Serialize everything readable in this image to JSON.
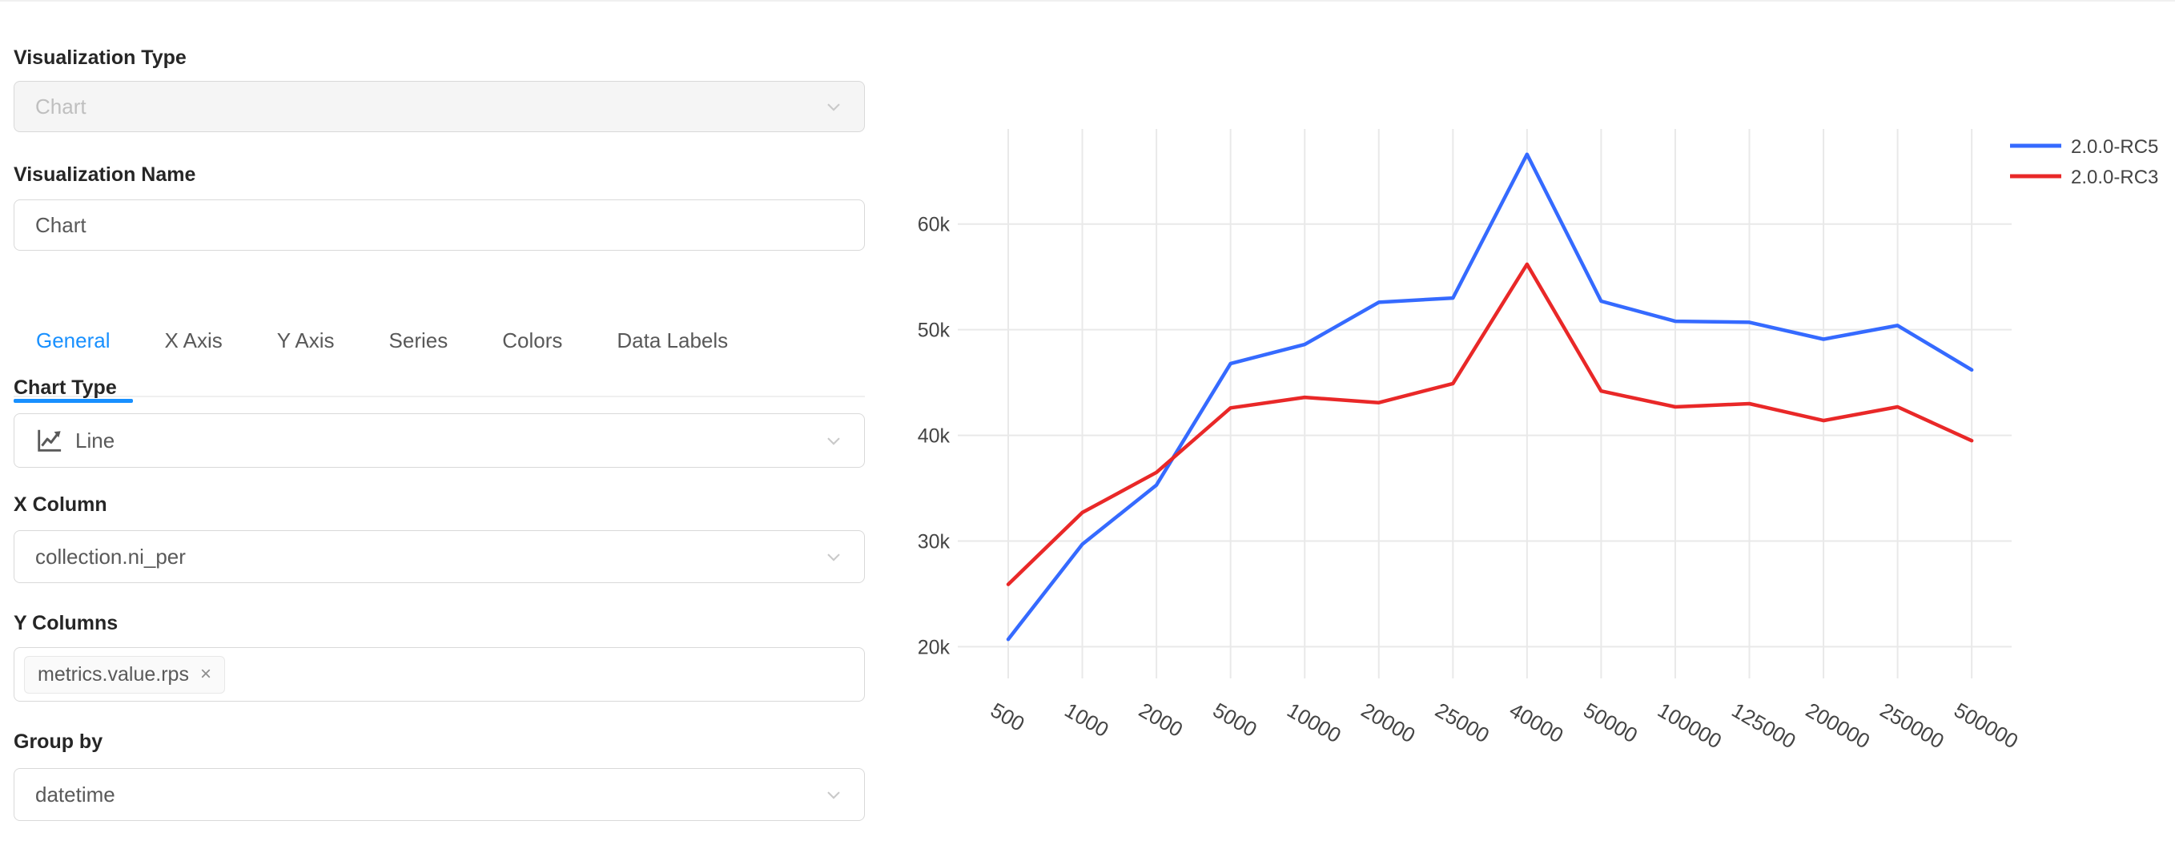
{
  "panel": {
    "visualization_type": {
      "label": "Visualization Type",
      "value": "Chart"
    },
    "visualization_name": {
      "label": "Visualization Name",
      "value": "Chart"
    },
    "tabs": [
      {
        "label": "General",
        "active": true
      },
      {
        "label": "X Axis",
        "active": false
      },
      {
        "label": "Y Axis",
        "active": false
      },
      {
        "label": "Series",
        "active": false
      },
      {
        "label": "Colors",
        "active": false
      },
      {
        "label": "Data Labels",
        "active": false
      }
    ],
    "chart_type": {
      "label": "Chart Type",
      "value": "Line",
      "icon": "line-chart-icon"
    },
    "x_column": {
      "label": "X Column",
      "value": "collection.ni_per"
    },
    "y_columns": {
      "label": "Y Columns",
      "tags": [
        {
          "value": "metrics.value.rps",
          "remove": "×"
        }
      ]
    },
    "group_by": {
      "label": "Group by",
      "value": "datetime"
    }
  },
  "colors": {
    "accent": "#1890ff",
    "grid": "#e9e9e9",
    "tick_text": "#444444",
    "label_text": "#262626",
    "field_text": "#595959",
    "disabled_text": "#bfbfbf"
  },
  "chart_data": {
    "type": "line",
    "title": "",
    "xlabel": "",
    "ylabel": "",
    "grid": true,
    "legend_position": "top-right",
    "x_tick_rotation": 30,
    "categories": [
      "500",
      "1000",
      "2000",
      "5000",
      "10000",
      "20000",
      "25000",
      "40000",
      "50000",
      "100000",
      "125000",
      "200000",
      "250000",
      "500000"
    ],
    "series": [
      {
        "name": "2.0.0-RC5",
        "color": "#356aff",
        "values": [
          20700,
          29700,
          35300,
          46800,
          48600,
          52600,
          53000,
          66600,
          52700,
          50800,
          50700,
          49100,
          50400,
          46200
        ]
      },
      {
        "name": "2.0.0-RC3",
        "color": "#e92828",
        "values": [
          25900,
          32700,
          36500,
          42600,
          43600,
          43100,
          44900,
          56200,
          44200,
          42700,
          43000,
          41400,
          42700,
          39500
        ]
      }
    ],
    "ylim": [
      17000,
      69000
    ],
    "ytick_values": [
      20000,
      30000,
      40000,
      50000,
      60000
    ],
    "ytick_labels": [
      "20k",
      "30k",
      "40k",
      "50k",
      "60k"
    ]
  }
}
